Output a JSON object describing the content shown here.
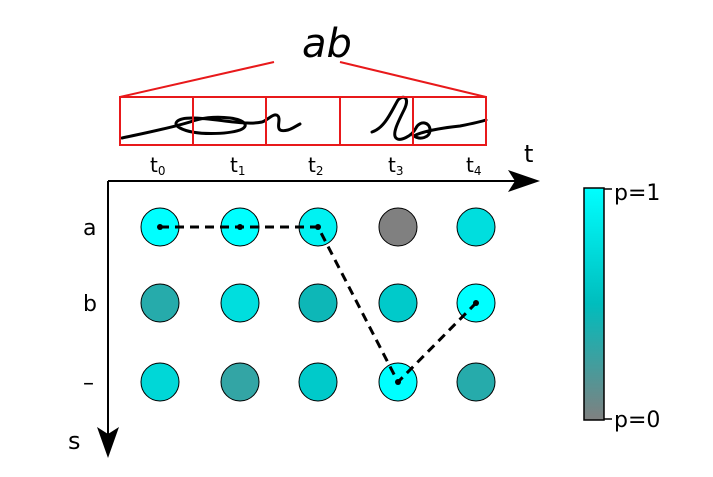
{
  "title_text": "ab",
  "axis": {
    "t_label": "t",
    "s_label": "s"
  },
  "time_labels": [
    {
      "base": "t",
      "sub": "0"
    },
    {
      "base": "t",
      "sub": "1"
    },
    {
      "base": "t",
      "sub": "2"
    },
    {
      "base": "t",
      "sub": "3"
    },
    {
      "base": "t",
      "sub": "4"
    }
  ],
  "row_labels": [
    "a",
    "b",
    "–"
  ],
  "grid_probabilities": [
    [
      1.0,
      1.0,
      0.9,
      0.0,
      0.75
    ],
    [
      0.35,
      0.75,
      0.45,
      0.6,
      1.0
    ],
    [
      0.7,
      0.3,
      0.6,
      1.0,
      0.35
    ]
  ],
  "path": [
    [
      0,
      0
    ],
    [
      0,
      1
    ],
    [
      0,
      2
    ],
    [
      2,
      3
    ],
    [
      1,
      4
    ]
  ],
  "colorbar": {
    "top_label": "p=1",
    "bottom_label": "p=0",
    "color_high": "#00FFFF",
    "color_mid": "#00BDBD",
    "color_low": "#808080"
  },
  "colors": {
    "box_red": "#E8191B",
    "path_black": "#000000"
  }
}
